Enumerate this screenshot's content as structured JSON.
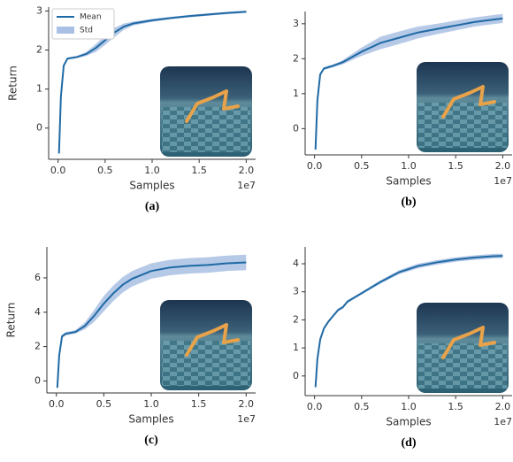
{
  "chart_data": [
    {
      "type": "line",
      "caption": "(a)",
      "xlabel": "Samples",
      "ylabel": "Return",
      "x_offset": "1e7",
      "legend": "upper left",
      "x": [
        0.01,
        0.03,
        0.06,
        0.1,
        0.2,
        0.3,
        0.4,
        0.5,
        0.6,
        0.7,
        0.8,
        1.0,
        1.2,
        1.4,
        1.6,
        1.8,
        2.0
      ],
      "series": [
        {
          "name": "Mean",
          "color": "#1f6aa5",
          "values": [
            -0.65,
            0.8,
            1.6,
            1.78,
            1.82,
            1.9,
            2.05,
            2.25,
            2.45,
            2.6,
            2.68,
            2.76,
            2.82,
            2.87,
            2.91,
            2.95,
            2.98
          ]
        },
        {
          "name": "Std",
          "color": "#a9bfe3",
          "values": [
            0.02,
            0.05,
            0.05,
            0.03,
            0.03,
            0.05,
            0.1,
            0.12,
            0.12,
            0.08,
            0.05,
            0.04,
            0.03,
            0.03,
            0.03,
            0.03,
            0.03
          ]
        }
      ],
      "xlim": [
        -0.1,
        2.1
      ],
      "ylim": [
        -0.8,
        3.1
      ],
      "xticks": [
        {
          "value": 0,
          "label": "0.0"
        },
        0.5,
        {
          "value": 1,
          "label": "1.0"
        },
        1.5,
        {
          "value": 2,
          "label": "2.0"
        }
      ],
      "yticks": [
        0,
        1,
        2,
        3
      ]
    },
    {
      "type": "line",
      "caption": "(b)",
      "xlabel": "Samples",
      "x_offset": "1e7",
      "x": [
        0.01,
        0.03,
        0.06,
        0.1,
        0.2,
        0.3,
        0.5,
        0.7,
        0.9,
        1.1,
        1.3,
        1.5,
        1.7,
        1.9,
        2.0
      ],
      "series": [
        {
          "color": "#1f6aa5",
          "values": [
            -0.6,
            0.8,
            1.55,
            1.72,
            1.8,
            1.9,
            2.2,
            2.45,
            2.6,
            2.75,
            2.85,
            2.95,
            3.05,
            3.12,
            3.15
          ]
        },
        {
          "color": "#a9bfe3",
          "values": [
            0.02,
            0.05,
            0.05,
            0.04,
            0.04,
            0.06,
            0.12,
            0.18,
            0.18,
            0.17,
            0.15,
            0.14,
            0.13,
            0.13,
            0.13
          ]
        }
      ],
      "xlim": [
        -0.1,
        2.1
      ],
      "ylim": [
        -0.75,
        3.35
      ],
      "xticks": [
        {
          "value": 0,
          "label": "0.0"
        },
        0.5,
        {
          "value": 1,
          "label": "1.0"
        },
        1.5,
        {
          "value": 2,
          "label": "2.0"
        }
      ],
      "yticks": [
        0,
        1,
        2,
        3
      ]
    },
    {
      "type": "line",
      "caption": "(c)",
      "xlabel": "Samples",
      "ylabel": "Return",
      "x_offset": "1e7",
      "x": [
        0.01,
        0.03,
        0.06,
        0.1,
        0.2,
        0.3,
        0.4,
        0.5,
        0.6,
        0.7,
        0.8,
        1.0,
        1.2,
        1.4,
        1.6,
        1.8,
        2.0
      ],
      "series": [
        {
          "color": "#1f6aa5",
          "values": [
            -0.4,
            1.5,
            2.6,
            2.75,
            2.85,
            3.2,
            3.8,
            4.5,
            5.1,
            5.6,
            5.95,
            6.4,
            6.6,
            6.7,
            6.75,
            6.85,
            6.9
          ]
        },
        {
          "color": "#a9bfe3",
          "values": [
            0.05,
            0.1,
            0.1,
            0.1,
            0.1,
            0.2,
            0.35,
            0.45,
            0.45,
            0.45,
            0.45,
            0.45,
            0.45,
            0.45,
            0.45,
            0.45,
            0.45
          ]
        }
      ],
      "xlim": [
        -0.1,
        2.1
      ],
      "ylim": [
        -0.7,
        7.8
      ],
      "xticks": [
        {
          "value": 0,
          "label": "0.0"
        },
        0.5,
        {
          "value": 1,
          "label": "1.0"
        },
        1.5,
        {
          "value": 2,
          "label": "2.0"
        }
      ],
      "yticks": [
        0,
        2,
        4,
        6
      ]
    },
    {
      "type": "line",
      "caption": "(d)",
      "xlabel": "Samples",
      "x_offset": "1e7",
      "x": [
        0.01,
        0.03,
        0.06,
        0.1,
        0.15,
        0.2,
        0.25,
        0.3,
        0.35,
        0.5,
        0.7,
        0.9,
        1.1,
        1.3,
        1.5,
        1.7,
        1.9,
        2.0
      ],
      "series": [
        {
          "color": "#1f6aa5",
          "values": [
            -0.4,
            0.6,
            1.3,
            1.7,
            1.95,
            2.15,
            2.35,
            2.45,
            2.65,
            2.95,
            3.35,
            3.7,
            3.92,
            4.05,
            4.15,
            4.22,
            4.27,
            4.28
          ]
        },
        {
          "color": "#a9bfe3",
          "values": [
            0.05,
            0.1,
            0.08,
            0.05,
            0.05,
            0.05,
            0.05,
            0.05,
            0.05,
            0.05,
            0.06,
            0.07,
            0.08,
            0.08,
            0.08,
            0.08,
            0.08,
            0.08
          ]
        }
      ],
      "xlim": [
        -0.1,
        2.1
      ],
      "ylim": [
        -0.7,
        4.6
      ],
      "xticks": [
        {
          "value": 0,
          "label": "0.0"
        },
        0.5,
        {
          "value": 1,
          "label": "1.0"
        },
        1.5,
        {
          "value": 2,
          "label": "2.0"
        }
      ],
      "yticks": [
        0,
        1,
        2,
        3,
        4
      ]
    }
  ]
}
